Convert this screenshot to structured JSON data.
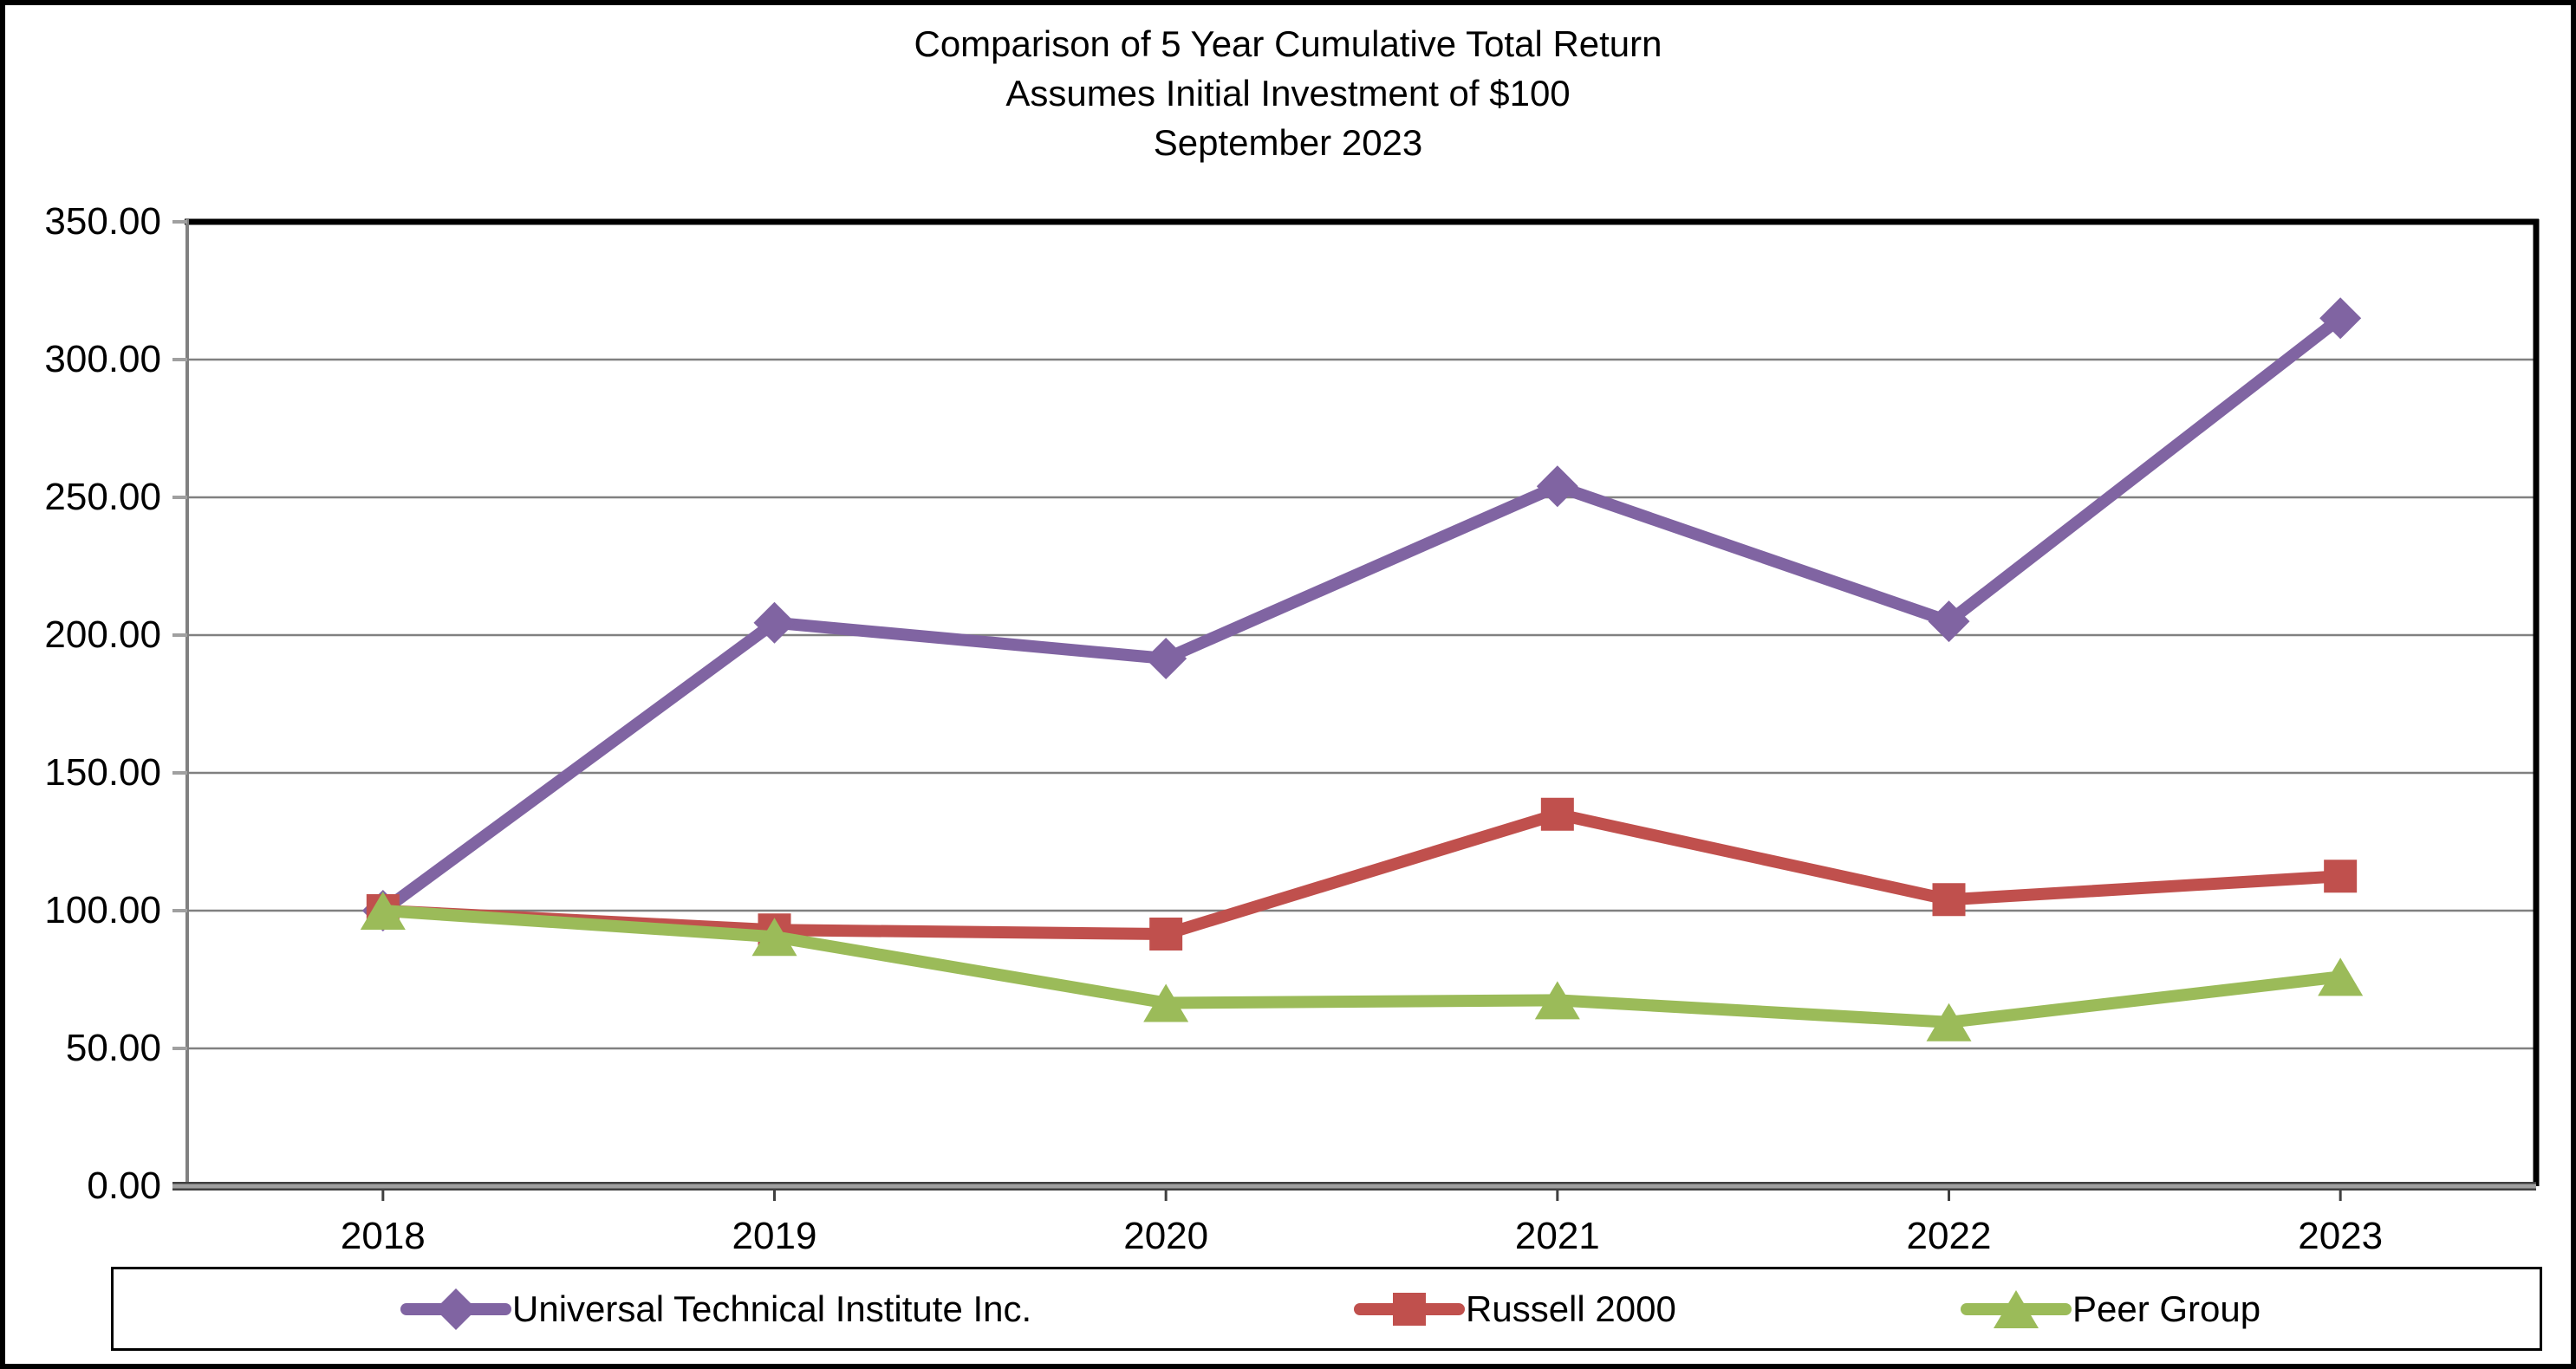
{
  "title": {
    "line1": "Comparison of 5 Year Cumulative Total Return",
    "line2": "Assumes Initial Investment of $100",
    "line3": "September 2023"
  },
  "chart_data": {
    "type": "line",
    "categories": [
      "2018",
      "2019",
      "2020",
      "2021",
      "2022",
      "2023"
    ],
    "series": [
      {
        "name": "Universal Technical Institute Inc.",
        "marker": "diamond",
        "color": "#8064A2",
        "values": [
          100.0,
          204.5,
          191.5,
          254.0,
          205.0,
          315.0
        ]
      },
      {
        "name": "Russell 2000",
        "marker": "square",
        "color": "#C0504D",
        "values": [
          100.0,
          93.0,
          91.5,
          135.0,
          104.0,
          112.5
        ]
      },
      {
        "name": "Peer Group",
        "marker": "triangle",
        "color": "#9BBB59",
        "values": [
          100.0,
          90.5,
          66.5,
          67.5,
          59.5,
          76.0
        ]
      }
    ],
    "ylim": [
      0,
      350
    ],
    "y_tick_step": 50,
    "y_tick_labels": [
      "0.00",
      "50.00",
      "100.00",
      "150.00",
      "200.00",
      "250.00",
      "300.00",
      "350.00"
    ],
    "grid": true,
    "legend_position": "bottom",
    "colors": {
      "gridline": "#808080",
      "axis_line": "#A0A0A0",
      "axis_edge": "#404040",
      "plot_border": "#000000",
      "text": "#000000"
    }
  }
}
